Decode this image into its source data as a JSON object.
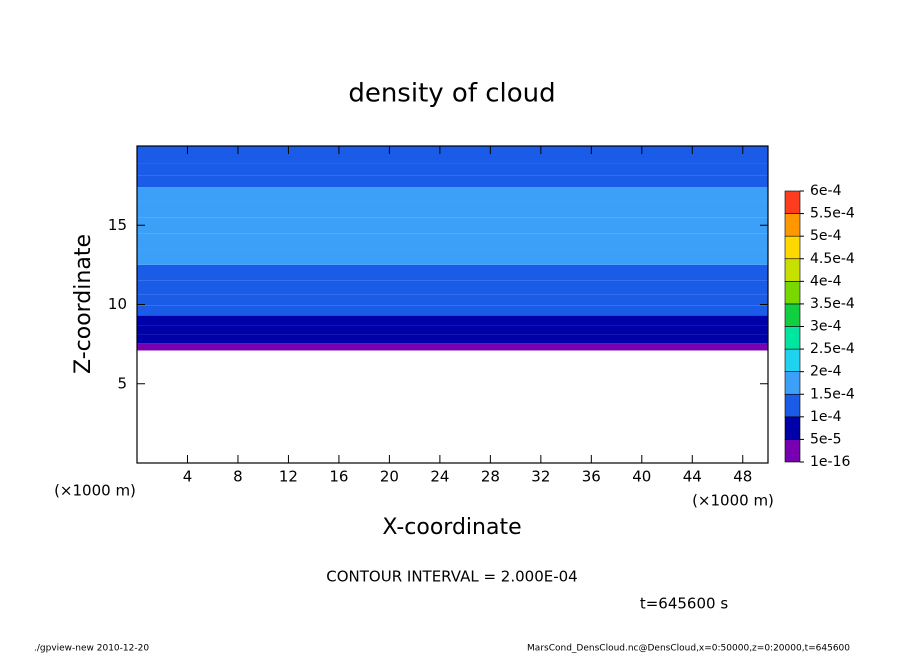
{
  "chart_data": {
    "type": "contour",
    "title": "density of cloud",
    "x_label": "X-coordinate",
    "y_label": "Z-coordinate",
    "x_unit": "(×1000 m)",
    "y_unit": "(×1000 m)",
    "xlim": [
      0,
      50
    ],
    "xticks": [
      4,
      8,
      12,
      16,
      20,
      24,
      28,
      32,
      36,
      40,
      44,
      48
    ],
    "ylim": [
      0,
      20
    ],
    "yticks": [
      5,
      10,
      15
    ],
    "z": [
      7.3,
      7.8,
      8.4,
      9.0,
      9.6,
      10.3,
      11.0,
      12.0,
      13.0,
      14.0,
      15.0,
      16.0,
      17.0,
      17.8,
      18.5,
      19.3
    ],
    "values": [
      3e-05,
      6e-05,
      8e-05,
      9.5e-05,
      0.000105,
      0.000115,
      0.00013,
      0.00014,
      0.00015,
      0.000155,
      0.00016,
      0.00016,
      0.000155,
      0.00014,
      0.00012,
      0.000105
    ],
    "field_bottom": 7.1,
    "levels": [
      {
        "value": 1e-16,
        "label": "1e-16"
      },
      {
        "value": 5e-05,
        "label": "5e-5"
      },
      {
        "value": 0.0001,
        "label": "1e-4"
      },
      {
        "value": 0.00015,
        "label": "1.5e-4"
      },
      {
        "value": 0.0002,
        "label": "2e-4"
      },
      {
        "value": 0.00025,
        "label": "2.5e-4"
      },
      {
        "value": 0.0003,
        "label": "3e-4"
      },
      {
        "value": 0.00035,
        "label": "3.5e-4"
      },
      {
        "value": 0.0004,
        "label": "4e-4"
      },
      {
        "value": 0.00045,
        "label": "4.5e-4"
      },
      {
        "value": 0.0005,
        "label": "5e-4"
      },
      {
        "value": 0.00055,
        "label": "5.5e-4"
      },
      {
        "value": 0.0006,
        "label": "6e-4"
      }
    ],
    "colors": [
      "#7800b0",
      "#0000a8",
      "#1a5ce8",
      "#3ca0f8",
      "#1ed2f0",
      "#00e6a0",
      "#10d040",
      "#78d800",
      "#c8e000",
      "#ffd800",
      "#ff9800",
      "#ff3c1e"
    ],
    "contour_interval": "CONTOUR INTERVAL = 2.000E-04",
    "time_label": "t=645600 s",
    "footer_left": "./gpview-new  2010-12-20",
    "footer_right": "MarsCond_DensCloud.nc@DensCloud,x=0:50000,z=0:20000,t=645600"
  }
}
